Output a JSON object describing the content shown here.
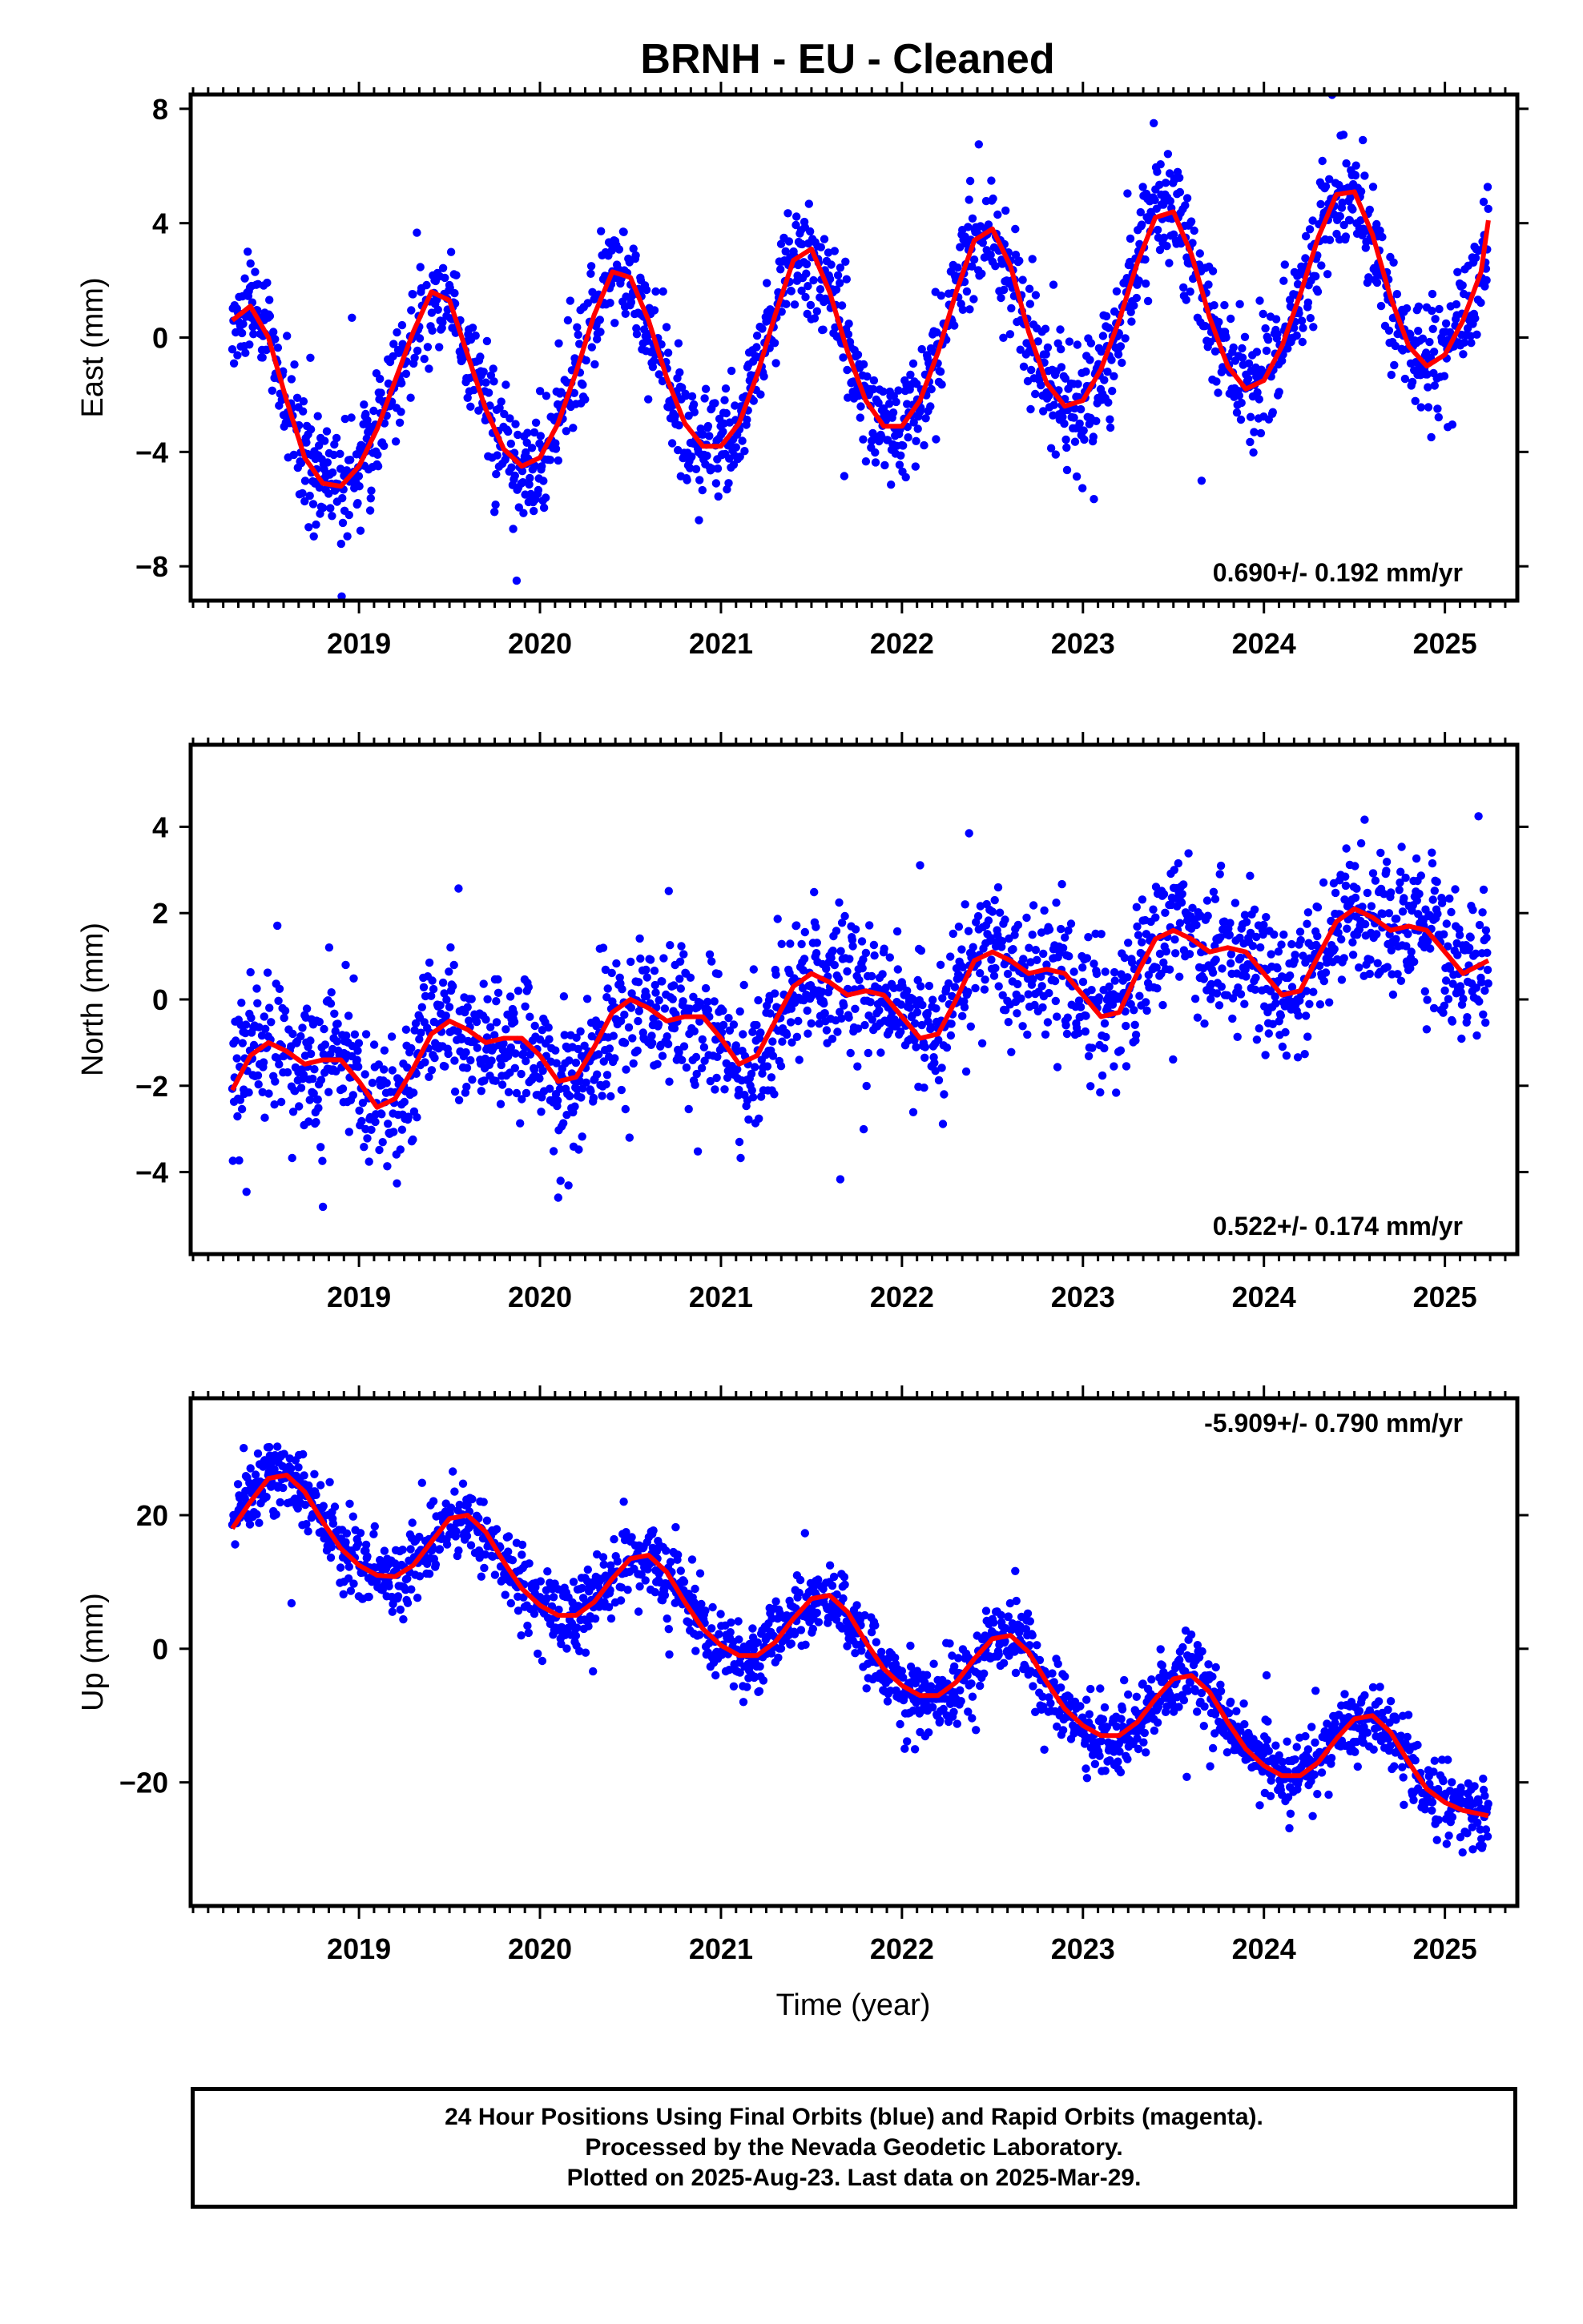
{
  "title": "BRNH  - EU - Cleaned",
  "footer": {
    "line1": "24 Hour Positions Using Final Orbits (blue) and Rapid Orbits (magenta).",
    "line2": "Processed by the Nevada Geodetic Laboratory.",
    "line3": "Plotted on 2025-Aug-23. Last data on 2025-Mar-29."
  },
  "colors": {
    "points": "#0000ff",
    "fit": "#ff0000"
  },
  "chart_data": [
    {
      "type": "scatter",
      "ylabel": "East (mm)",
      "xlim": [
        2018.07,
        2025.4
      ],
      "ylim": [
        -9.2,
        8.5
      ],
      "yticks": [
        -8,
        -4,
        0,
        4,
        8
      ],
      "xticks": [
        2019,
        2020,
        2021,
        2022,
        2023,
        2024,
        2025
      ],
      "rate": "0.690+/- 0.192 mm/yr",
      "data_start": 2018.3,
      "data_end": 2025.24,
      "fit_samples": [
        [
          2018.3,
          0.6
        ],
        [
          2018.4,
          1.1
        ],
        [
          2018.5,
          0.0
        ],
        [
          2018.6,
          -2.2
        ],
        [
          2018.7,
          -4.2
        ],
        [
          2018.8,
          -5.1
        ],
        [
          2018.9,
          -5.2
        ],
        [
          2019.0,
          -4.5
        ],
        [
          2019.1,
          -3.2
        ],
        [
          2019.2,
          -1.5
        ],
        [
          2019.3,
          0.2
        ],
        [
          2019.4,
          1.6
        ],
        [
          2019.5,
          1.3
        ],
        [
          2019.6,
          -0.6
        ],
        [
          2019.7,
          -2.5
        ],
        [
          2019.8,
          -3.9
        ],
        [
          2019.9,
          -4.5
        ],
        [
          2020.0,
          -4.2
        ],
        [
          2020.1,
          -3.0
        ],
        [
          2020.2,
          -1.2
        ],
        [
          2020.3,
          0.8
        ],
        [
          2020.4,
          2.3
        ],
        [
          2020.5,
          2.1
        ],
        [
          2020.6,
          0.6
        ],
        [
          2020.7,
          -1.4
        ],
        [
          2020.8,
          -3.0
        ],
        [
          2020.9,
          -3.8
        ],
        [
          2021.0,
          -3.8
        ],
        [
          2021.1,
          -3.0
        ],
        [
          2021.2,
          -1.3
        ],
        [
          2021.3,
          0.8
        ],
        [
          2021.4,
          2.7
        ],
        [
          2021.5,
          3.1
        ],
        [
          2021.6,
          1.6
        ],
        [
          2021.7,
          -0.5
        ],
        [
          2021.8,
          -2.2
        ],
        [
          2021.9,
          -3.1
        ],
        [
          2022.0,
          -3.1
        ],
        [
          2022.1,
          -2.2
        ],
        [
          2022.2,
          -0.5
        ],
        [
          2022.3,
          1.6
        ],
        [
          2022.4,
          3.4
        ],
        [
          2022.5,
          3.8
        ],
        [
          2022.6,
          2.5
        ],
        [
          2022.7,
          0.2
        ],
        [
          2022.8,
          -1.6
        ],
        [
          2022.9,
          -2.4
        ],
        [
          2023.0,
          -2.2
        ],
        [
          2023.1,
          -1.1
        ],
        [
          2023.2,
          0.6
        ],
        [
          2023.3,
          2.6
        ],
        [
          2023.4,
          4.2
        ],
        [
          2023.5,
          4.4
        ],
        [
          2023.6,
          2.9
        ],
        [
          2023.7,
          0.7
        ],
        [
          2023.8,
          -1.0
        ],
        [
          2023.9,
          -1.8
        ],
        [
          2024.0,
          -1.5
        ],
        [
          2024.1,
          -0.3
        ],
        [
          2024.2,
          1.5
        ],
        [
          2024.3,
          3.5
        ],
        [
          2024.4,
          5.0
        ],
        [
          2024.5,
          5.1
        ],
        [
          2024.6,
          3.6
        ],
        [
          2024.7,
          1.4
        ],
        [
          2024.8,
          -0.3
        ],
        [
          2024.9,
          -1.0
        ],
        [
          2025.0,
          -0.6
        ],
        [
          2025.1,
          0.6
        ],
        [
          2025.2,
          2.3
        ],
        [
          2025.24,
          4.1
        ]
      ],
      "scatter_sigma": 1.3
    },
    {
      "type": "scatter",
      "ylabel": "North (mm)",
      "xlim": [
        2018.07,
        2025.4
      ],
      "ylim": [
        -5.9,
        5.9
      ],
      "yticks": [
        -4,
        -2,
        0,
        2,
        4
      ],
      "xticks": [
        2019,
        2020,
        2021,
        2022,
        2023,
        2024,
        2025
      ],
      "rate": "0.522+/- 0.174 mm/yr",
      "data_start": 2018.3,
      "data_end": 2025.24,
      "fit_samples": [
        [
          2018.3,
          -2.1
        ],
        [
          2018.4,
          -1.3
        ],
        [
          2018.5,
          -1.0
        ],
        [
          2018.6,
          -1.2
        ],
        [
          2018.7,
          -1.5
        ],
        [
          2018.8,
          -1.4
        ],
        [
          2018.9,
          -1.4
        ],
        [
          2019.0,
          -1.9
        ],
        [
          2019.1,
          -2.5
        ],
        [
          2019.2,
          -2.3
        ],
        [
          2019.3,
          -1.6
        ],
        [
          2019.4,
          -0.8
        ],
        [
          2019.5,
          -0.5
        ],
        [
          2019.6,
          -0.7
        ],
        [
          2019.7,
          -1.0
        ],
        [
          2019.8,
          -0.9
        ],
        [
          2019.9,
          -0.9
        ],
        [
          2020.0,
          -1.3
        ],
        [
          2020.1,
          -1.9
        ],
        [
          2020.2,
          -1.8
        ],
        [
          2020.3,
          -1.1
        ],
        [
          2020.4,
          -0.3
        ],
        [
          2020.5,
          0.0
        ],
        [
          2020.6,
          -0.2
        ],
        [
          2020.7,
          -0.5
        ],
        [
          2020.8,
          -0.4
        ],
        [
          2020.9,
          -0.4
        ],
        [
          2021.0,
          -0.9
        ],
        [
          2021.1,
          -1.5
        ],
        [
          2021.2,
          -1.3
        ],
        [
          2021.3,
          -0.5
        ],
        [
          2021.4,
          0.3
        ],
        [
          2021.5,
          0.6
        ],
        [
          2021.6,
          0.4
        ],
        [
          2021.7,
          0.1
        ],
        [
          2021.8,
          0.2
        ],
        [
          2021.9,
          0.1
        ],
        [
          2022.0,
          -0.4
        ],
        [
          2022.1,
          -0.9
        ],
        [
          2022.2,
          -0.8
        ],
        [
          2022.3,
          0.0
        ],
        [
          2022.4,
          0.9
        ],
        [
          2022.5,
          1.1
        ],
        [
          2022.6,
          0.9
        ],
        [
          2022.7,
          0.6
        ],
        [
          2022.8,
          0.7
        ],
        [
          2022.9,
          0.6
        ],
        [
          2023.0,
          0.1
        ],
        [
          2023.1,
          -0.4
        ],
        [
          2023.2,
          -0.3
        ],
        [
          2023.3,
          0.6
        ],
        [
          2023.4,
          1.4
        ],
        [
          2023.5,
          1.6
        ],
        [
          2023.6,
          1.4
        ],
        [
          2023.7,
          1.1
        ],
        [
          2023.8,
          1.2
        ],
        [
          2023.9,
          1.1
        ],
        [
          2024.0,
          0.6
        ],
        [
          2024.1,
          0.1
        ],
        [
          2024.2,
          0.2
        ],
        [
          2024.3,
          1.0
        ],
        [
          2024.4,
          1.8
        ],
        [
          2024.5,
          2.1
        ],
        [
          2024.6,
          1.9
        ],
        [
          2024.7,
          1.6
        ],
        [
          2024.8,
          1.7
        ],
        [
          2024.9,
          1.6
        ],
        [
          2025.0,
          1.1
        ],
        [
          2025.1,
          0.6
        ],
        [
          2025.24,
          0.9
        ]
      ],
      "scatter_sigma": 1.05
    },
    {
      "type": "scatter",
      "ylabel": "Up (mm)",
      "xlim": [
        2018.07,
        2025.4
      ],
      "ylim": [
        -38.5,
        37.5
      ],
      "yticks": [
        -20,
        0,
        20
      ],
      "xticks": [
        2019,
        2020,
        2021,
        2022,
        2023,
        2024,
        2025
      ],
      "xlabel": "Time (year)",
      "rate": "-5.909+/- 0.790 mm/yr",
      "data_start": 2018.3,
      "data_end": 2025.24,
      "fit_samples": [
        [
          2018.3,
          18
        ],
        [
          2018.4,
          22
        ],
        [
          2018.5,
          25.5
        ],
        [
          2018.6,
          26
        ],
        [
          2018.7,
          23.5
        ],
        [
          2018.8,
          19
        ],
        [
          2018.9,
          15
        ],
        [
          2019.0,
          12.5
        ],
        [
          2019.1,
          11
        ],
        [
          2019.2,
          10.8
        ],
        [
          2019.3,
          12.5
        ],
        [
          2019.4,
          16
        ],
        [
          2019.5,
          19.5
        ],
        [
          2019.6,
          20
        ],
        [
          2019.7,
          17.5
        ],
        [
          2019.8,
          13
        ],
        [
          2019.9,
          9
        ],
        [
          2020.0,
          6.5
        ],
        [
          2020.1,
          5
        ],
        [
          2020.2,
          5
        ],
        [
          2020.3,
          7
        ],
        [
          2020.4,
          10.5
        ],
        [
          2020.5,
          13.5
        ],
        [
          2020.6,
          14
        ],
        [
          2020.7,
          11.5
        ],
        [
          2020.8,
          7
        ],
        [
          2020.9,
          3
        ],
        [
          2021.0,
          0.5
        ],
        [
          2021.1,
          -1
        ],
        [
          2021.2,
          -1
        ],
        [
          2021.3,
          1
        ],
        [
          2021.4,
          4.5
        ],
        [
          2021.5,
          7.5
        ],
        [
          2021.6,
          8
        ],
        [
          2021.7,
          5.5
        ],
        [
          2021.8,
          1
        ],
        [
          2021.9,
          -3
        ],
        [
          2022.0,
          -5.5
        ],
        [
          2022.1,
          -7
        ],
        [
          2022.2,
          -7
        ],
        [
          2022.3,
          -5
        ],
        [
          2022.4,
          -1.5
        ],
        [
          2022.5,
          1.5
        ],
        [
          2022.6,
          2
        ],
        [
          2022.7,
          -0.5
        ],
        [
          2022.8,
          -5
        ],
        [
          2022.9,
          -9
        ],
        [
          2023.0,
          -11.5
        ],
        [
          2023.1,
          -13
        ],
        [
          2023.2,
          -13
        ],
        [
          2023.3,
          -11
        ],
        [
          2023.4,
          -7.5
        ],
        [
          2023.5,
          -4.5
        ],
        [
          2023.6,
          -4
        ],
        [
          2023.7,
          -6.5
        ],
        [
          2023.8,
          -11
        ],
        [
          2023.9,
          -15
        ],
        [
          2024.0,
          -17.5
        ],
        [
          2024.1,
          -19
        ],
        [
          2024.2,
          -19
        ],
        [
          2024.3,
          -17
        ],
        [
          2024.4,
          -13.5
        ],
        [
          2024.5,
          -10.5
        ],
        [
          2024.6,
          -10
        ],
        [
          2024.7,
          -12.5
        ],
        [
          2024.8,
          -17
        ],
        [
          2024.9,
          -21
        ],
        [
          2025.0,
          -23
        ],
        [
          2025.1,
          -24.2
        ],
        [
          2025.24,
          -25
        ]
      ],
      "scatter_sigma": 3.6
    }
  ]
}
